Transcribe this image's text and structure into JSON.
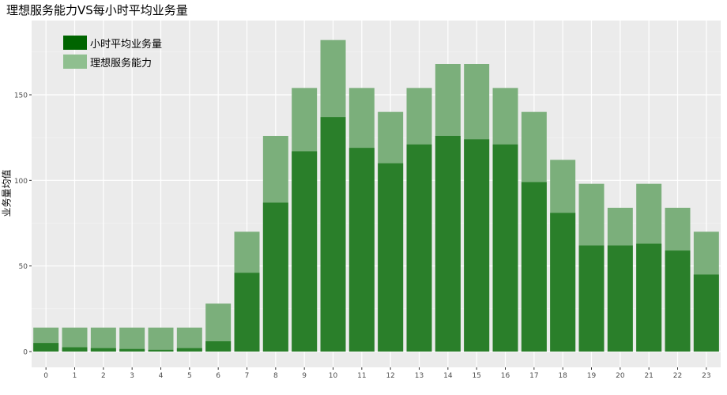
{
  "chart_data": {
    "type": "bar",
    "title": "理想服务能力VS每小时平均业务量",
    "xlabel": "",
    "ylabel": "业务量均值",
    "categories": [
      "0",
      "1",
      "2",
      "3",
      "4",
      "5",
      "6",
      "7",
      "8",
      "9",
      "10",
      "11",
      "12",
      "13",
      "14",
      "15",
      "16",
      "17",
      "18",
      "19",
      "20",
      "21",
      "22",
      "23"
    ],
    "ylim": [
      0,
      190
    ],
    "yticks": [
      0,
      50,
      100,
      150
    ],
    "grid": true,
    "legend_position": "top-left",
    "series": [
      {
        "name": "理想服务能力",
        "color": "#7BAF7B",
        "values": [
          14,
          14,
          14,
          14,
          14,
          14,
          28,
          70,
          126,
          154,
          182,
          154,
          140,
          154,
          168,
          168,
          154,
          140,
          112,
          98,
          84,
          98,
          84,
          70
        ]
      },
      {
        "name": "小时平均业务量",
        "color": "#2A7F2A",
        "values": [
          5,
          2.5,
          2,
          1.5,
          1,
          2,
          6,
          46,
          87,
          117,
          137,
          119,
          110,
          121,
          126,
          124,
          121,
          99,
          81,
          62,
          62,
          63,
          59,
          45
        ]
      }
    ],
    "legend": [
      {
        "label": "小时平均业务量",
        "color": "#006400"
      },
      {
        "label": "理想服务能力",
        "color": "#8FBF8F"
      }
    ]
  }
}
